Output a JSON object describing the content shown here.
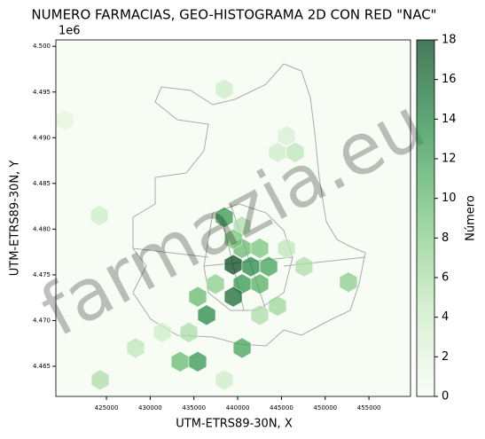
{
  "chart_data": {
    "type": "hexbin",
    "title": "NUMERO FARMACIAS, GEO-HISTOGRAMA 2D CON RED \"NAC\"",
    "x_label": "UTM-ETRS89-30N, X",
    "y_label": "UTM-ETRS89-30N, Y",
    "y_offset_label": "1e6",
    "colorbar_label": "Número",
    "watermark": "farmazia.eu",
    "colormap": [
      "#f7fcf5",
      "#c7e9c0",
      "#74c476",
      "#238b45",
      "#00441b"
    ],
    "xlim": [
      419220,
      459750
    ],
    "ylim": [
      4.4617,
      4.5007
    ],
    "xticks": [
      425000,
      430000,
      435000,
      440000,
      445000,
      450000,
      455000
    ],
    "yticks": [
      {
        "value": 4.465,
        "label": "4.465"
      },
      {
        "value": 4.47,
        "label": "4.470"
      },
      {
        "value": 4.475,
        "label": "4.475"
      },
      {
        "value": 4.48,
        "label": "4.480"
      },
      {
        "value": 4.485,
        "label": "4.485"
      },
      {
        "value": 4.49,
        "label": "4.490"
      },
      {
        "value": 4.495,
        "label": "4.495"
      },
      {
        "value": 4.5,
        "label": "4.500"
      }
    ],
    "zlim": [
      0,
      18
    ],
    "zticks": [
      0,
      2,
      4,
      6,
      8,
      10,
      12,
      14,
      16,
      18
    ],
    "x": [
      438470,
      420240,
      445560,
      444550,
      446580,
      424190,
      438470,
      440500,
      439490,
      441510,
      443540,
      440500,
      442520,
      439490,
      435430,
      436450,
      437460,
      440500,
      439490,
      442520,
      445560,
      447590,
      444550,
      442520,
      452650,
      440500,
      433410,
      435430,
      428340,
      424290,
      438470,
      434420,
      431380
    ],
    "y": [
      4.4953,
      4.4919,
      4.4902,
      4.4884,
      4.4884,
      4.4815,
      4.4813,
      4.4803,
      4.4761,
      4.4759,
      4.4759,
      4.474,
      4.474,
      4.4726,
      4.4726,
      4.4706,
      4.474,
      4.4779,
      4.4789,
      4.4779,
      4.4779,
      4.4759,
      4.4716,
      4.4706,
      4.4742,
      4.467,
      4.4655,
      4.4655,
      4.467,
      4.4635,
      4.4635,
      4.4687,
      4.4687
    ],
    "values": [
      4,
      2,
      3,
      4,
      5,
      4,
      13,
      6,
      18,
      14,
      12,
      13,
      11,
      16,
      10,
      14,
      8,
      10,
      9,
      9,
      5,
      6,
      7,
      6,
      8,
      12,
      10,
      13,
      5,
      6,
      4,
      6,
      4
    ]
  }
}
